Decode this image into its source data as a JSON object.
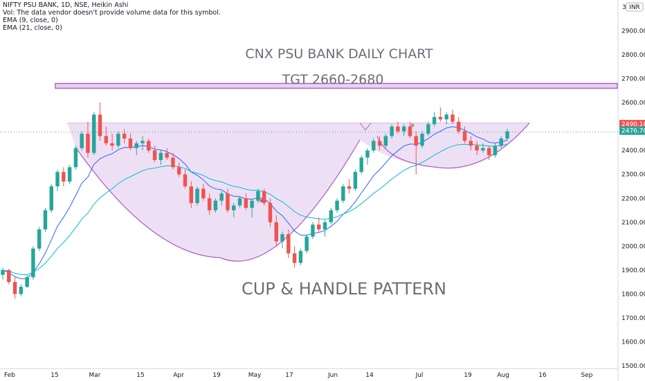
{
  "legend": {
    "title": "NIFTY PSU BANK, 1D, NSE, Heikin Ashi",
    "volume_note": "Vol: The data vendor doesn't provide volume data for this symbol.",
    "ema9": "EMA (9, close, 0)",
    "ema21": "EMA (21, close, 0)"
  },
  "currency": "INR",
  "colors": {
    "up": "#26a69a",
    "down": "#ef5350",
    "ema9": "#2962ff",
    "ema21": "#00bcd4",
    "pattern_fill": "#e8d5f0",
    "pattern_line": "#b061c6",
    "target_line": "#b061c6",
    "annotation_text": "#6a6d78",
    "last_price_red": "#ef5350",
    "last_price_green": "#26a69a"
  },
  "annotations": {
    "title": "CNX PSU BANK DAILY CHART",
    "target": "TGT 2660-2680",
    "pattern": "CUP & HANDLE PATTERN"
  },
  "price_tags": {
    "upper": "2490.10",
    "lower": "2476.70"
  },
  "chart_data": {
    "type": "candlestick",
    "title": "NIFTY PSU BANK, 1D, NSE, Heikin Ashi",
    "ylim": [
      1500,
      3000
    ],
    "y_ticks": [
      "2900.00",
      "2800.00",
      "2700.00",
      "2600.00",
      "2500.00",
      "2400.00",
      "2300.00",
      "2200.00",
      "2100.00",
      "2000.00",
      "1900.00",
      "1800.00",
      "1700.00",
      "1600.00",
      "1500.00"
    ],
    "y_top_label": "3(",
    "x_ticks": [
      "Feb",
      "15",
      "Mar",
      "15",
      "Apr",
      "19",
      "May",
      "17",
      "Jun",
      "14",
      "Jul",
      "19",
      "Aug",
      "16",
      "Sep"
    ],
    "target_zone": [
      2660,
      2680
    ],
    "last_prices": [
      2490.1,
      2476.7
    ],
    "candles": [
      [
        1880,
        1910,
        1860,
        1900
      ],
      [
        1900,
        1905,
        1840,
        1850
      ],
      [
        1850,
        1870,
        1780,
        1800
      ],
      [
        1800,
        1840,
        1790,
        1830
      ],
      [
        1830,
        1880,
        1825,
        1870
      ],
      [
        1870,
        2000,
        1860,
        1990
      ],
      [
        1990,
        2080,
        1980,
        2070
      ],
      [
        2070,
        2160,
        2060,
        2150
      ],
      [
        2150,
        2260,
        2140,
        2250
      ],
      [
        2250,
        2320,
        2230,
        2310
      ],
      [
        2310,
        2330,
        2250,
        2270
      ],
      [
        2270,
        2340,
        2260,
        2330
      ],
      [
        2330,
        2420,
        2320,
        2410
      ],
      [
        2410,
        2480,
        2400,
        2470
      ],
      [
        2470,
        2520,
        2370,
        2390
      ],
      [
        2390,
        2560,
        2380,
        2550
      ],
      [
        2550,
        2600,
        2440,
        2460
      ],
      [
        2460,
        2500,
        2420,
        2430
      ],
      [
        2430,
        2470,
        2400,
        2420
      ],
      [
        2420,
        2480,
        2410,
        2470
      ],
      [
        2470,
        2490,
        2430,
        2450
      ],
      [
        2450,
        2470,
        2400,
        2410
      ],
      [
        2410,
        2440,
        2380,
        2430
      ],
      [
        2430,
        2460,
        2400,
        2440
      ],
      [
        2440,
        2450,
        2390,
        2400
      ],
      [
        2400,
        2420,
        2350,
        2360
      ],
      [
        2360,
        2400,
        2340,
        2390
      ],
      [
        2390,
        2410,
        2360,
        2370
      ],
      [
        2370,
        2390,
        2320,
        2330
      ],
      [
        2330,
        2350,
        2290,
        2300
      ],
      [
        2300,
        2320,
        2240,
        2250
      ],
      [
        2250,
        2270,
        2160,
        2180
      ],
      [
        2180,
        2250,
        2170,
        2240
      ],
      [
        2240,
        2260,
        2190,
        2200
      ],
      [
        2200,
        2220,
        2130,
        2150
      ],
      [
        2150,
        2200,
        2140,
        2190
      ],
      [
        2190,
        2230,
        2170,
        2220
      ],
      [
        2220,
        2240,
        2140,
        2150
      ],
      [
        2150,
        2180,
        2120,
        2170
      ],
      [
        2170,
        2210,
        2160,
        2200
      ],
      [
        2200,
        2220,
        2150,
        2160
      ],
      [
        2160,
        2200,
        2120,
        2190
      ],
      [
        2190,
        2240,
        2180,
        2230
      ],
      [
        2230,
        2240,
        2170,
        2180
      ],
      [
        2180,
        2200,
        2080,
        2100
      ],
      [
        2100,
        2130,
        2000,
        2020
      ],
      [
        2020,
        2060,
        1990,
        2050
      ],
      [
        2050,
        2070,
        1950,
        1970
      ],
      [
        1970,
        2000,
        1910,
        1930
      ],
      [
        1930,
        1990,
        1920,
        1980
      ],
      [
        1980,
        2050,
        1970,
        2040
      ],
      [
        2040,
        2100,
        2030,
        2090
      ],
      [
        2090,
        2120,
        2060,
        2070
      ],
      [
        2070,
        2110,
        2040,
        2100
      ],
      [
        2100,
        2160,
        2090,
        2150
      ],
      [
        2150,
        2200,
        2140,
        2190
      ],
      [
        2190,
        2260,
        2180,
        2250
      ],
      [
        2250,
        2280,
        2220,
        2240
      ],
      [
        2240,
        2320,
        2230,
        2310
      ],
      [
        2310,
        2380,
        2300,
        2370
      ],
      [
        2370,
        2410,
        2340,
        2400
      ],
      [
        2400,
        2450,
        2390,
        2440
      ],
      [
        2440,
        2460,
        2400,
        2420
      ],
      [
        2420,
        2470,
        2410,
        2460
      ],
      [
        2460,
        2510,
        2450,
        2500
      ],
      [
        2500,
        2520,
        2470,
        2480
      ],
      [
        2480,
        2510,
        2460,
        2500
      ],
      [
        2500,
        2520,
        2450,
        2460
      ],
      [
        2460,
        2480,
        2300,
        2420
      ],
      [
        2420,
        2480,
        2410,
        2470
      ],
      [
        2470,
        2520,
        2460,
        2510
      ],
      [
        2510,
        2560,
        2500,
        2540
      ],
      [
        2540,
        2580,
        2520,
        2530
      ],
      [
        2530,
        2560,
        2510,
        2550
      ],
      [
        2550,
        2570,
        2510,
        2520
      ],
      [
        2520,
        2540,
        2470,
        2480
      ],
      [
        2480,
        2500,
        2430,
        2440
      ],
      [
        2440,
        2460,
        2400,
        2420
      ],
      [
        2420,
        2440,
        2380,
        2400
      ],
      [
        2400,
        2430,
        2390,
        2410
      ],
      [
        2410,
        2420,
        2360,
        2380
      ],
      [
        2380,
        2430,
        2370,
        2420
      ],
      [
        2420,
        2460,
        2410,
        2450
      ],
      [
        2450,
        2490,
        2440,
        2480
      ]
    ]
  }
}
